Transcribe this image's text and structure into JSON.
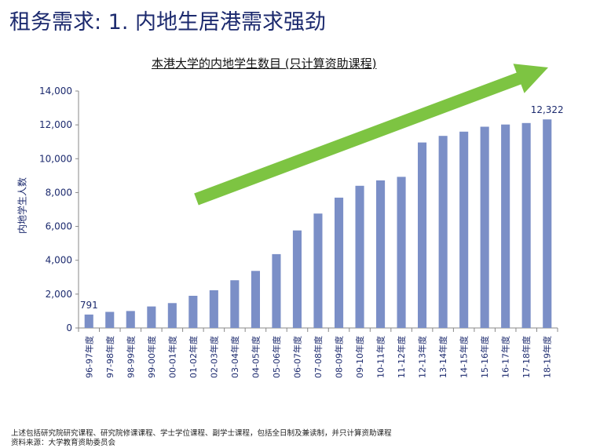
{
  "slide": {
    "title": "租务需求: 1. 内地生居港需求强劲",
    "arrow_color": "#7dc442",
    "title_color": "#1c2a6e"
  },
  "chart_data": {
    "type": "bar",
    "title": "本港大学的内地学生数目 (只计算资助课程)",
    "ylabel": "内地学生人数",
    "xlabel": "",
    "ylim": [
      0,
      14000
    ],
    "yticks": [
      0,
      2000,
      4000,
      6000,
      8000,
      10000,
      12000,
      14000
    ],
    "ytick_labels": [
      "0",
      "2,000",
      "4,000",
      "6,000",
      "8,000",
      "10,000",
      "12,000",
      "14,000"
    ],
    "bar_color": "#7b8fc7",
    "categories": [
      "96-97年度",
      "97-98年度",
      "98-99年度",
      "99-00年度",
      "00-01年度",
      "01-02年度",
      "02-03年度",
      "03-04年度",
      "04-05年度",
      "05-06年度",
      "06-07年度",
      "07-08年度",
      "08-09年度",
      "09-10年度",
      "10-11年度",
      "11-12年度",
      "12-13年度",
      "13-14年度",
      "14-15年度",
      "15-16年度",
      "16-17年度",
      "17-18年度",
      "18-19年度"
    ],
    "values": [
      791,
      950,
      1000,
      1270,
      1470,
      1900,
      2230,
      2820,
      3370,
      4360,
      5760,
      6760,
      7700,
      8400,
      8720,
      8930,
      10960,
      11350,
      11600,
      11890,
      12020,
      12110,
      12322
    ],
    "data_labels": [
      {
        "index": 0,
        "text": "791"
      },
      {
        "index": 22,
        "text": "12,322"
      }
    ]
  },
  "footnotes": {
    "line1": "上述包括研究院研究课程、研究院修课课程、学士学位课程、副学士课程，包括全日制及兼读制，并只计算资助课程",
    "line2": "资料来源：大学教育资助委员会"
  }
}
